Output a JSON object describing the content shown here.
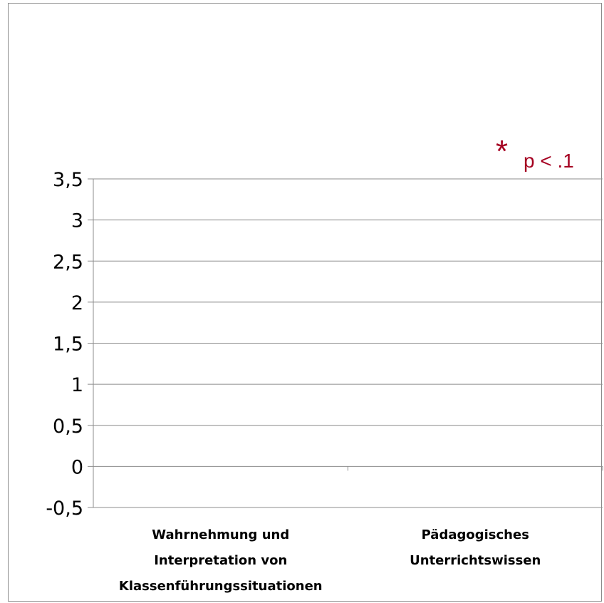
{
  "chart_data": {
    "type": "bar",
    "categories": [
      [
        "Wahrnehmung und",
        "Interpretation von",
        "Klassenführungssituationen"
      ],
      [
        "Pädagogisches",
        "Unterrichtswissen"
      ]
    ],
    "series": [],
    "ylim": [
      -0.5,
      3.5
    ],
    "yticks": [
      "3,5",
      "3",
      "2,5",
      "2",
      "1,5",
      "1",
      "0,5",
      "0",
      "-0,5"
    ],
    "ytick_values": [
      3.5,
      3,
      2.5,
      2,
      1.5,
      1,
      0.5,
      0,
      -0.5
    ],
    "grid": true,
    "annotation": {
      "star": "*",
      "text": "p < .1"
    },
    "colors": {
      "grid": "#8c8c8c",
      "annotation": "#a50021"
    }
  }
}
